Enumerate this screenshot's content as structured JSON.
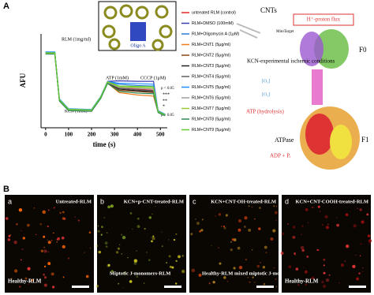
{
  "panel_a": {
    "label": "A",
    "inset_label": "Oligo A",
    "diagram": {
      "cnts": "CNTs",
      "mitotarget": "MitoTarget",
      "proton_flux": "H⁺-proton flux",
      "f0": "F0",
      "kcn": "KCN-experimental ischemic conditions",
      "o2_a": "[O₂]",
      "o2_b": "[O₂]",
      "atp_hydrolysis": "ATP (hydrolysis)",
      "atpase": "ATPase",
      "f1": "F1",
      "adp": "ADP + Pᵢ"
    }
  },
  "chart_data": {
    "type": "line",
    "x_label": "time (s)",
    "y_label": "AFU",
    "annotations": {
      "rlm": "RLM (1mg/ml)",
      "kcn": "KCN (1mM)",
      "atp": "ATP (1mM)",
      "cccp": "CCCP (1μM)",
      "p_lt": "p < 0.05",
      "s3": "***",
      "s2": "**",
      "s1": "*",
      "p_gt": "p > 0.05"
    },
    "x": [
      0,
      40,
      60,
      100,
      200,
      240,
      270,
      320,
      400,
      470,
      490,
      520
    ],
    "xlim": [
      -20,
      530
    ],
    "xticks": [
      0,
      100,
      200,
      300,
      400,
      500
    ],
    "ylim": [
      0,
      400
    ],
    "series": [
      {
        "name": "untreated RLM (control)",
        "color": "#e8262b",
        "values": [
          320,
          320,
          120,
          78,
          75,
          130,
          195,
          170,
          165,
          160,
          70,
          55
        ]
      },
      {
        "name": "RLM+DMSO (100mM)",
        "color": "#3b3bb0",
        "values": [
          322,
          322,
          122,
          80,
          77,
          132,
          198,
          200,
          198,
          198,
          72,
          57
        ]
      },
      {
        "name": "RLM+Oligomycin A (1μM)",
        "color": "#2a7ad8",
        "values": [
          318,
          318,
          118,
          76,
          73,
          128,
          196,
          185,
          180,
          178,
          71,
          56
        ]
      },
      {
        "name": "RLM+CNT1 (5μg/ml)",
        "color": "#f07d1a",
        "values": [
          315,
          315,
          115,
          74,
          71,
          126,
          190,
          150,
          140,
          135,
          66,
          52
        ]
      },
      {
        "name": "RLM+CNT2 (5μg/ml)",
        "color": "#8b4513",
        "values": [
          317,
          317,
          117,
          75,
          72,
          127,
          192,
          160,
          155,
          150,
          67,
          53
        ]
      },
      {
        "name": "RLM+CNT3 (5μg/ml)",
        "color": "#222222",
        "values": [
          319,
          319,
          119,
          77,
          74,
          129,
          193,
          165,
          158,
          155,
          68,
          54
        ]
      },
      {
        "name": "RLM+CNT4 (5μg/ml)",
        "color": "#606060",
        "values": [
          321,
          321,
          121,
          79,
          76,
          131,
          194,
          168,
          162,
          158,
          69,
          55
        ]
      },
      {
        "name": "RLM+CNT5 (5μg/ml)",
        "color": "#1e90ff",
        "values": [
          323,
          323,
          123,
          81,
          78,
          133,
          197,
          190,
          188,
          186,
          73,
          58
        ]
      },
      {
        "name": "RLM+CNT6 (5μg/ml)",
        "color": "#a0a0a0",
        "values": [
          316,
          316,
          116,
          76,
          73,
          128,
          193,
          172,
          168,
          165,
          68,
          54
        ]
      },
      {
        "name": "RLM+CNT7 (5μg/ml)",
        "color": "#9acd32",
        "values": [
          318,
          318,
          118,
          78,
          75,
          130,
          195,
          175,
          172,
          170,
          69,
          55
        ]
      },
      {
        "name": "RLM+CNT8 (5μg/ml)",
        "color": "#2e8b57",
        "values": [
          314,
          314,
          114,
          73,
          70,
          125,
          189,
          155,
          148,
          145,
          65,
          51
        ]
      },
      {
        "name": "RLM+CNT9 (5μg/ml)",
        "color": "#66cc33",
        "values": [
          320,
          320,
          120,
          79,
          76,
          131,
          196,
          178,
          176,
          175,
          70,
          56
        ]
      }
    ]
  },
  "panel_b": {
    "label": "B",
    "images": [
      {
        "letter": "a",
        "title": "Untreated-RLM",
        "caption": "Healthy-RLM"
      },
      {
        "letter": "b",
        "title": "KCN+p-CNT-treated-RLM",
        "caption": "Miptotic J-monomers-RLM"
      },
      {
        "letter": "c",
        "title": "KCN+CNT-OH-treated-RLM",
        "caption": "Healthy-RLM mixed miptotic J-monomers"
      },
      {
        "letter": "d",
        "title": "KCN+CNT-COOH-treated-RLM",
        "caption": "Healthy-RLM"
      }
    ]
  }
}
